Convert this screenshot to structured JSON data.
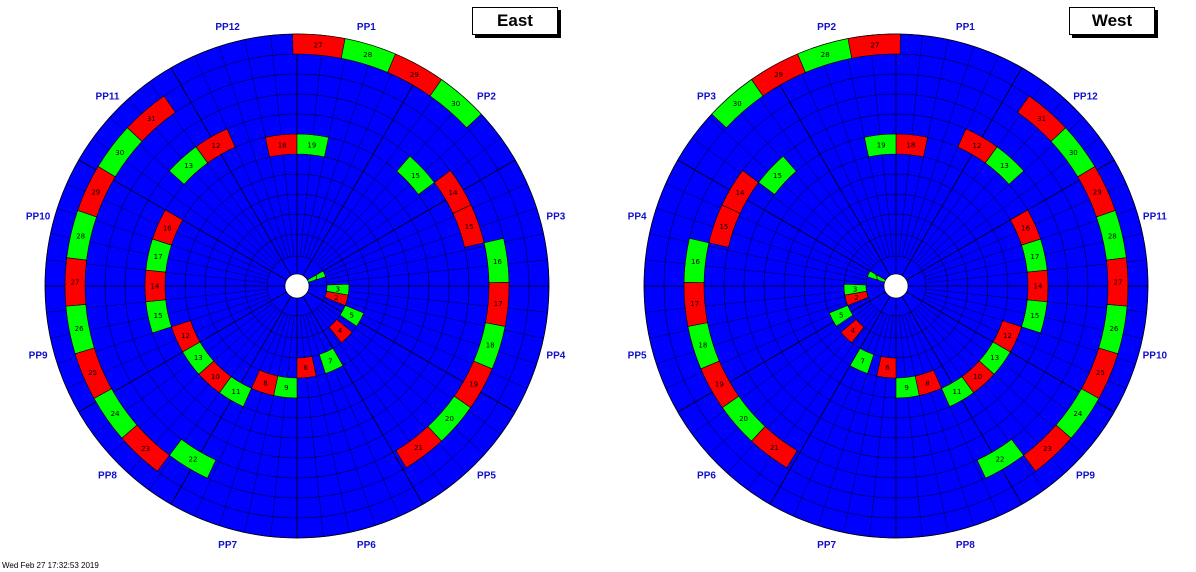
{
  "panels": [
    {
      "id": "east",
      "title": "East",
      "pp_labels": [
        "PP1",
        "PP2",
        "PP3",
        "PP4",
        "PP5",
        "PP6",
        "PP7",
        "PP8",
        "PP9",
        "PP10",
        "PP11",
        "PP12"
      ],
      "highlights": [
        {
          "color": "red",
          "label": "27"
        },
        {
          "color": "green",
          "label": "28"
        },
        {
          "color": "red",
          "label": "29"
        },
        {
          "color": "green",
          "label": "30"
        },
        {
          "color": "red",
          "label": "31"
        },
        {
          "color": "green",
          "label": "30"
        },
        {
          "color": "red",
          "label": "29"
        },
        {
          "color": "green",
          "label": "28"
        },
        {
          "color": "red",
          "label": "27"
        },
        {
          "color": "green",
          "label": "26"
        },
        {
          "color": "red",
          "label": "25"
        },
        {
          "color": "green",
          "label": "24"
        },
        {
          "color": "red",
          "label": "23"
        },
        {
          "color": "green",
          "label": "22"
        },
        {
          "color": "red",
          "label": "21"
        },
        {
          "color": "green",
          "label": "20"
        },
        {
          "color": "red",
          "label": "19"
        },
        {
          "color": "green",
          "label": "18"
        },
        {
          "color": "red",
          "label": "17"
        },
        {
          "color": "green",
          "label": "16"
        },
        {
          "color": "red",
          "label": "15"
        },
        {
          "color": "red",
          "label": "14"
        },
        {
          "color": "green",
          "label": "15"
        },
        {
          "color": "red",
          "label": "12"
        },
        {
          "color": "green",
          "label": "13"
        },
        {
          "color": "red",
          "label": "18"
        },
        {
          "color": "green",
          "label": "19"
        },
        {
          "color": "red",
          "label": "16"
        },
        {
          "color": "green",
          "label": "17"
        },
        {
          "color": "red",
          "label": "14"
        },
        {
          "color": "green",
          "label": "15"
        },
        {
          "color": "red",
          "label": "12"
        },
        {
          "color": "green",
          "label": "13"
        },
        {
          "color": "red",
          "label": "10"
        },
        {
          "color": "green",
          "label": "11"
        },
        {
          "color": "red",
          "label": "8"
        },
        {
          "color": "green",
          "label": "9"
        },
        {
          "color": "red",
          "label": "6"
        },
        {
          "color": "green",
          "label": "7"
        },
        {
          "color": "red",
          "label": "4"
        },
        {
          "color": "green",
          "label": "5"
        },
        {
          "color": "red",
          "label": "2"
        },
        {
          "color": "green",
          "label": "3"
        },
        {
          "color": "green",
          "label": "1"
        }
      ]
    },
    {
      "id": "west",
      "title": "West",
      "pp_labels": [
        "PP1",
        "PP12",
        "PP11",
        "PP10",
        "PP9",
        "PP8",
        "PP7",
        "PP6",
        "PP5",
        "PP4",
        "PP3",
        "PP2"
      ],
      "highlights": [
        {
          "color": "red",
          "label": "27"
        },
        {
          "color": "green",
          "label": "28"
        },
        {
          "color": "red",
          "label": "29"
        },
        {
          "color": "green",
          "label": "30"
        },
        {
          "color": "red",
          "label": "31"
        },
        {
          "color": "green",
          "label": "30"
        },
        {
          "color": "red",
          "label": "29"
        },
        {
          "color": "green",
          "label": "28"
        },
        {
          "color": "red",
          "label": "27"
        },
        {
          "color": "green",
          "label": "26"
        },
        {
          "color": "red",
          "label": "25"
        },
        {
          "color": "green",
          "label": "24"
        },
        {
          "color": "red",
          "label": "23"
        },
        {
          "color": "green",
          "label": "22"
        },
        {
          "color": "red",
          "label": "21"
        },
        {
          "color": "green",
          "label": "20"
        },
        {
          "color": "red",
          "label": "19"
        },
        {
          "color": "green",
          "label": "18"
        },
        {
          "color": "red",
          "label": "17"
        },
        {
          "color": "green",
          "label": "16"
        },
        {
          "color": "red",
          "label": "15"
        },
        {
          "color": "red",
          "label": "14"
        },
        {
          "color": "green",
          "label": "15"
        },
        {
          "color": "red",
          "label": "12"
        },
        {
          "color": "green",
          "label": "13"
        },
        {
          "color": "red",
          "label": "18"
        },
        {
          "color": "green",
          "label": "19"
        },
        {
          "color": "red",
          "label": "16"
        },
        {
          "color": "green",
          "label": "17"
        },
        {
          "color": "red",
          "label": "14"
        },
        {
          "color": "green",
          "label": "15"
        },
        {
          "color": "red",
          "label": "12"
        },
        {
          "color": "green",
          "label": "13"
        },
        {
          "color": "red",
          "label": "10"
        },
        {
          "color": "green",
          "label": "11"
        },
        {
          "color": "red",
          "label": "8"
        },
        {
          "color": "green",
          "label": "9"
        },
        {
          "color": "red",
          "label": "6"
        },
        {
          "color": "green",
          "label": "7"
        },
        {
          "color": "red",
          "label": "4"
        },
        {
          "color": "green",
          "label": "5"
        },
        {
          "color": "red",
          "label": "2"
        },
        {
          "color": "green",
          "label": "3"
        },
        {
          "color": "green",
          "label": "1"
        }
      ]
    }
  ],
  "colors": {
    "background_fill": "#0000ff",
    "highlight_red": "#ff0000",
    "highlight_green": "#00ff00",
    "grid_line": "#000000",
    "label_text": "#1010c8"
  },
  "footer": "Wed Feb 27 17:32:53 2019"
}
